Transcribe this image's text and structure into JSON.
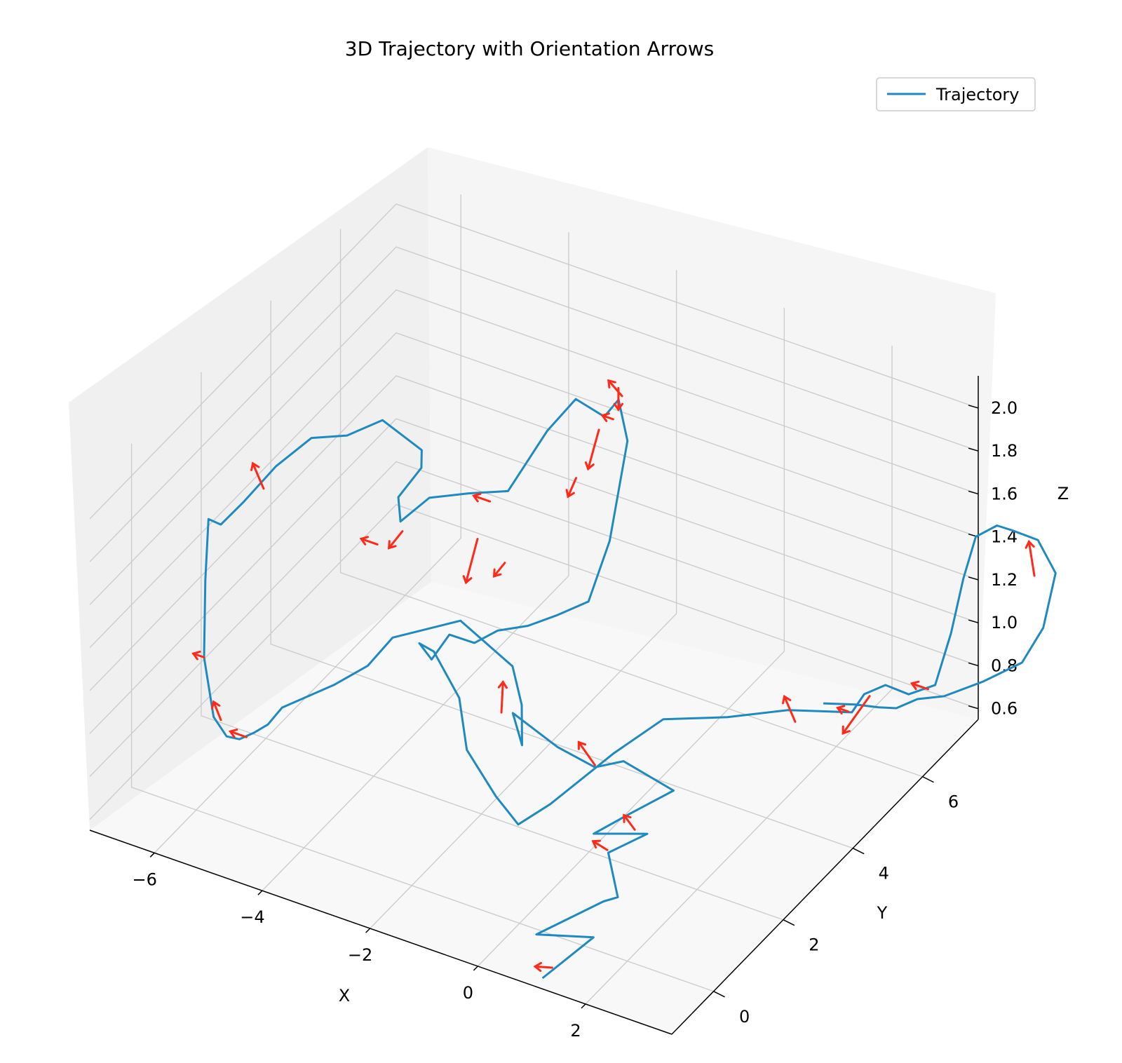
{
  "chart_data": {
    "type": "line",
    "projection": "3d",
    "title": "3D Trajectory with Orientation Arrows",
    "xlabel": "X",
    "ylabel": "Y",
    "zlabel": "Z",
    "x_ticks": [
      "−6",
      "−4",
      "−2",
      "0",
      "2"
    ],
    "y_ticks": [
      "0",
      "2",
      "4",
      "6"
    ],
    "z_ticks": [
      "0.6",
      "0.8",
      "1.0",
      "1.2",
      "1.4",
      "1.6",
      "1.8",
      "2.0"
    ],
    "legend": {
      "position": "top-right",
      "entries": [
        "Trajectory"
      ]
    },
    "grid": true,
    "colors": {
      "trajectory": "#1f8ac0",
      "arrows": "#ff2a1a",
      "pane": "#f2f2f2",
      "grid": "#cccccc"
    },
    "series": [
      {
        "name": "Trajectory",
        "points": [
          [
            1.2,
            -1.2,
            0.6
          ],
          [
            1.5,
            -0.2,
            0.65
          ],
          [
            0.7,
            -0.6,
            0.66
          ],
          [
            1.3,
            0.4,
            0.7
          ],
          [
            1.5,
            0.5,
            0.72
          ],
          [
            1.0,
            1.0,
            0.8
          ],
          [
            1.4,
            1.5,
            0.84
          ],
          [
            0.6,
            1.2,
            0.82
          ],
          [
            1.0,
            1.6,
            0.88
          ],
          [
            1.5,
            2.1,
            0.95
          ],
          [
            0.7,
            1.9,
            1.05
          ],
          [
            0.3,
            1.7,
            1.02
          ],
          [
            -0.2,
            1.4,
            1.12
          ],
          [
            -0.9,
            1.2,
            1.25
          ],
          [
            -0.6,
            1.0,
            1.16
          ],
          [
            -0.8,
            1.3,
            1.28
          ],
          [
            -1.1,
            1.5,
            1.4
          ],
          [
            -2.0,
            1.4,
            1.55
          ],
          [
            -3.0,
            1.0,
            1.45
          ],
          [
            -3.4,
            0.9,
            1.3
          ],
          [
            -3.9,
            0.7,
            1.2
          ],
          [
            -4.6,
            0.3,
            1.1
          ],
          [
            -4.8,
            0.2,
            1.02
          ],
          [
            -5.0,
            0.1,
            0.98
          ],
          [
            -5.2,
            0.0,
            0.95
          ],
          [
            -5.5,
            0.1,
            0.92
          ],
          [
            -6.0,
            0.5,
            0.9
          ],
          [
            -6.5,
            1.0,
            1.05
          ],
          [
            -6.8,
            1.5,
            1.3
          ],
          [
            -7.0,
            1.9,
            1.5
          ],
          [
            -6.9,
            2.1,
            1.45
          ],
          [
            -6.6,
            2.3,
            1.55
          ],
          [
            -6.2,
            2.6,
            1.7
          ],
          [
            -5.8,
            3.0,
            1.8
          ],
          [
            -5.4,
            3.4,
            1.78
          ],
          [
            -5.0,
            3.8,
            1.82
          ],
          [
            -4.4,
            4.0,
            1.7
          ],
          [
            -4.6,
            4.3,
            1.55
          ],
          [
            -4.9,
            4.1,
            1.42
          ],
          [
            -4.6,
            3.7,
            1.4
          ],
          [
            -4.0,
            3.6,
            1.58
          ],
          [
            -3.4,
            3.8,
            1.62
          ],
          [
            -2.8,
            4.0,
            1.65
          ],
          [
            -2.2,
            4.2,
            1.95
          ],
          [
            -1.8,
            4.4,
            2.1
          ],
          [
            -1.6,
            4.5,
            2.06
          ],
          [
            -1.4,
            4.6,
            2.02
          ],
          [
            -1.2,
            4.7,
            2.1
          ],
          [
            -1.1,
            4.8,
            1.9
          ],
          [
            -1.3,
            4.6,
            1.45
          ],
          [
            -1.5,
            4.3,
            1.2
          ],
          [
            -1.9,
            4.0,
            1.15
          ],
          [
            -2.3,
            3.8,
            1.1
          ],
          [
            -2.8,
            3.7,
            1.05
          ],
          [
            -3.1,
            3.5,
            1.0
          ],
          [
            -3.5,
            3.4,
            1.02
          ],
          [
            -3.7,
            3.2,
            0.92
          ],
          [
            -3.8,
            3.0,
            1.02
          ],
          [
            -3.4,
            2.8,
            1.05
          ],
          [
            -2.8,
            2.6,
            0.92
          ],
          [
            -2.4,
            2.2,
            0.78
          ],
          [
            -1.6,
            1.8,
            0.7
          ],
          [
            -1.2,
            1.5,
            0.72
          ],
          [
            -0.8,
            1.2,
            0.74
          ],
          [
            -0.4,
            1.5,
            0.82
          ],
          [
            0.2,
            2.4,
            0.96
          ],
          [
            0.6,
            3.2,
            1.02
          ],
          [
            1.4,
            3.8,
            1.0
          ],
          [
            2.2,
            4.3,
            1.02
          ],
          [
            2.6,
            4.6,
            1.0
          ],
          [
            3.0,
            4.9,
            0.98
          ],
          [
            3.1,
            5.1,
            1.04
          ],
          [
            3.3,
            5.4,
            1.05
          ],
          [
            3.6,
            5.6,
            1.0
          ],
          [
            3.9,
            5.9,
            1.02
          ],
          [
            4.0,
            6.2,
            1.22
          ],
          [
            4.1,
            6.4,
            1.45
          ],
          [
            4.2,
            6.6,
            1.62
          ],
          [
            4.4,
            6.9,
            1.64
          ],
          [
            4.6,
            7.0,
            1.62
          ],
          [
            4.9,
            7.3,
            1.55
          ],
          [
            5.1,
            7.5,
            1.38
          ],
          [
            5.0,
            7.3,
            1.15
          ],
          [
            4.8,
            7.0,
            1.02
          ],
          [
            4.4,
            6.5,
            0.98
          ],
          [
            4.0,
            6.0,
            0.96
          ],
          [
            3.7,
            5.7,
            0.97
          ],
          [
            3.5,
            5.4,
            0.96
          ],
          [
            3.3,
            5.2,
            0.98
          ],
          [
            3.0,
            5.0,
            1.0
          ],
          [
            2.6,
            4.7,
            1.02
          ]
        ]
      }
    ],
    "orientation_arrows": [
      {
        "at": [
          1.25,
          -1.0,
          0.62
        ],
        "dir": [
          -0.25,
          -0.1,
          0.0
        ]
      },
      {
        "at": [
          0.95,
          1.05,
          0.8
        ],
        "dir": [
          -0.2,
          -0.1,
          0.04
        ]
      },
      {
        "at": [
          1.2,
          1.45,
          0.85
        ],
        "dir": [
          -0.2,
          0.0,
          0.05
        ]
      },
      {
        "at": [
          0.3,
          1.7,
          1.03
        ],
        "dir": [
          -0.3,
          0.0,
          0.08
        ]
      },
      {
        "at": [
          -1.5,
          1.8,
          1.1
        ],
        "dir": [
          -0.1,
          0.2,
          0.1
        ]
      },
      {
        "at": [
          -5.1,
          0.05,
          0.96
        ],
        "dir": [
          -0.3,
          0.0,
          0.0
        ]
      },
      {
        "at": [
          -5.8,
          0.4,
          0.92
        ],
        "dir": [
          -0.2,
          0.1,
          0.05
        ]
      },
      {
        "at": [
          -6.5,
          1.0,
          1.05
        ],
        "dir": [
          -0.2,
          0.0,
          0.0
        ]
      },
      {
        "at": [
          -6.3,
          2.4,
          1.62
        ],
        "dir": [
          -0.2,
          0.0,
          0.1
        ]
      },
      {
        "at": [
          -4.9,
          3.5,
          1.3
        ],
        "dir": [
          -0.3,
          0.0,
          0.0
        ]
      },
      {
        "at": [
          -4.5,
          3.6,
          1.38
        ],
        "dir": [
          -0.25,
          0.0,
          -0.1
        ]
      },
      {
        "at": [
          -3.2,
          4.1,
          1.55
        ],
        "dir": [
          -0.3,
          0.0,
          0.0
        ]
      },
      {
        "at": [
          -3.3,
          3.9,
          1.4
        ],
        "dir": [
          -0.15,
          -0.1,
          -0.2
        ]
      },
      {
        "at": [
          -2.6,
          3.6,
          1.4
        ],
        "dir": [
          -0.2,
          0.0,
          -0.08
        ]
      },
      {
        "at": [
          -1.6,
          4.1,
          1.8
        ],
        "dir": [
          -0.15,
          0.0,
          -0.1
        ]
      },
      {
        "at": [
          -1.5,
          4.6,
          1.95
        ],
        "dir": [
          -0.2,
          0.0,
          -0.2
        ]
      },
      {
        "at": [
          -1.3,
          4.7,
          2.0
        ],
        "dir": [
          -0.2,
          0.0,
          0.0
        ]
      },
      {
        "at": [
          -1.2,
          4.8,
          2.1
        ],
        "dir": [
          -0.25,
          0.0,
          0.05
        ]
      },
      {
        "at": [
          -1.3,
          4.85,
          2.12
        ],
        "dir": [
          0.0,
          0.0,
          -0.1
        ]
      },
      {
        "at": [
          2.4,
          4.2,
          1.0
        ],
        "dir": [
          -0.2,
          0.0,
          0.1
        ]
      },
      {
        "at": [
          3.0,
          4.8,
          1.0
        ],
        "dir": [
          -0.2,
          0.0,
          0.0
        ]
      },
      {
        "at": [
          3.2,
          5.1,
          1.04
        ],
        "dir": [
          -0.3,
          -0.3,
          -0.15
        ]
      },
      {
        "at": [
          3.8,
          5.85,
          1.0
        ],
        "dir": [
          -0.3,
          0.0,
          0.0
        ]
      },
      {
        "at": [
          4.9,
          7.2,
          1.4
        ],
        "dir": [
          -0.1,
          0.0,
          0.15
        ]
      }
    ]
  }
}
